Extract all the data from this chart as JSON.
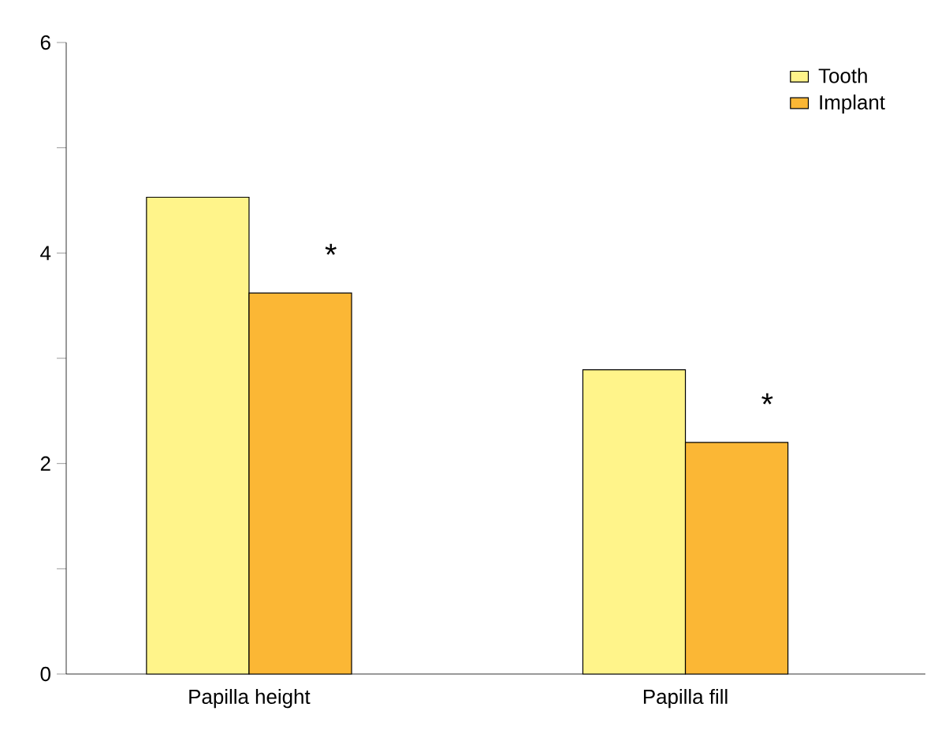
{
  "chart_data": {
    "type": "bar",
    "categories": [
      "Papilla height",
      "Papilla fill"
    ],
    "series": [
      {
        "name": "Tooth",
        "color": "#fff48a",
        "values": [
          4.53,
          2.89
        ]
      },
      {
        "name": "Implant",
        "color": "#fbb735",
        "values": [
          3.62,
          2.2
        ]
      }
    ],
    "ylim": [
      0,
      6
    ],
    "yticks": [
      0,
      {
        "value": 1,
        "label": null
      },
      2,
      {
        "value": 3,
        "label": null
      },
      4,
      {
        "value": 5,
        "label": null
      },
      6
    ],
    "annotations": [
      "*",
      "*"
    ],
    "grid": false,
    "legend": "top right"
  }
}
